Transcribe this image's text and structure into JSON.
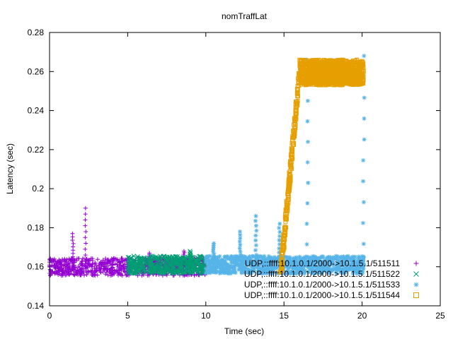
{
  "chart_data": {
    "type": "scatter",
    "title": "nomTraffLat",
    "xlabel": "Time (sec)",
    "ylabel": "Latency (sec)",
    "xlim": [
      0,
      25
    ],
    "ylim": [
      0.14,
      0.28
    ],
    "xticks": [
      0,
      5,
      10,
      15,
      20,
      25
    ],
    "yticks": [
      0.14,
      0.16,
      0.18,
      0.2,
      0.22,
      0.24,
      0.26,
      0.28
    ],
    "legend_position": "bottom-right",
    "series": [
      {
        "name": "UDP,::ffff:10.1.0.1/2000->10.1.5.1/511511",
        "marker": "plus",
        "color": "#9400d3",
        "x_range": [
          0,
          10
        ],
        "baseline": 0.16,
        "spikes": [
          {
            "x": 1.5,
            "y": 0.177
          },
          {
            "x": 2.3,
            "y": 0.19
          },
          {
            "x": 6.4,
            "y": 0.167
          },
          {
            "x": 8.6,
            "y": 0.168
          }
        ]
      },
      {
        "name": "UDP,::ffff:10.1.0.1/2000->10.1.5.1/511522",
        "marker": "x",
        "color": "#009e73",
        "x_range": [
          5,
          10
        ],
        "baseline": 0.161,
        "spikes": [
          {
            "x": 9.0,
            "y": 0.168
          }
        ]
      },
      {
        "name": "UDP,::ffff:10.1.0.1/2000->10.1.5.1/511533",
        "marker": "star",
        "color": "#56b4e9",
        "x_range": [
          10,
          20.1
        ],
        "baseline": 0.161,
        "spikes": [
          {
            "x": 10.5,
            "y": 0.172
          },
          {
            "x": 12.2,
            "y": 0.178
          },
          {
            "x": 13.2,
            "y": 0.186
          },
          {
            "x": 14.7,
            "y": 0.182
          },
          {
            "x": 16.5,
            "y": 0.266
          },
          {
            "x": 20.1,
            "y": 0.268
          }
        ]
      },
      {
        "name": "UDP,::ffff:10.1.0.1/2000->10.1.5.1/511544",
        "marker": "square",
        "color": "#e69f00",
        "ramp": [
          {
            "x": 14.8,
            "y": 0.157
          },
          {
            "x": 16.0,
            "y": 0.26
          }
        ],
        "plateau": {
          "x_range": [
            16.0,
            20.1
          ],
          "y_range": [
            0.253,
            0.266
          ]
        }
      }
    ]
  }
}
